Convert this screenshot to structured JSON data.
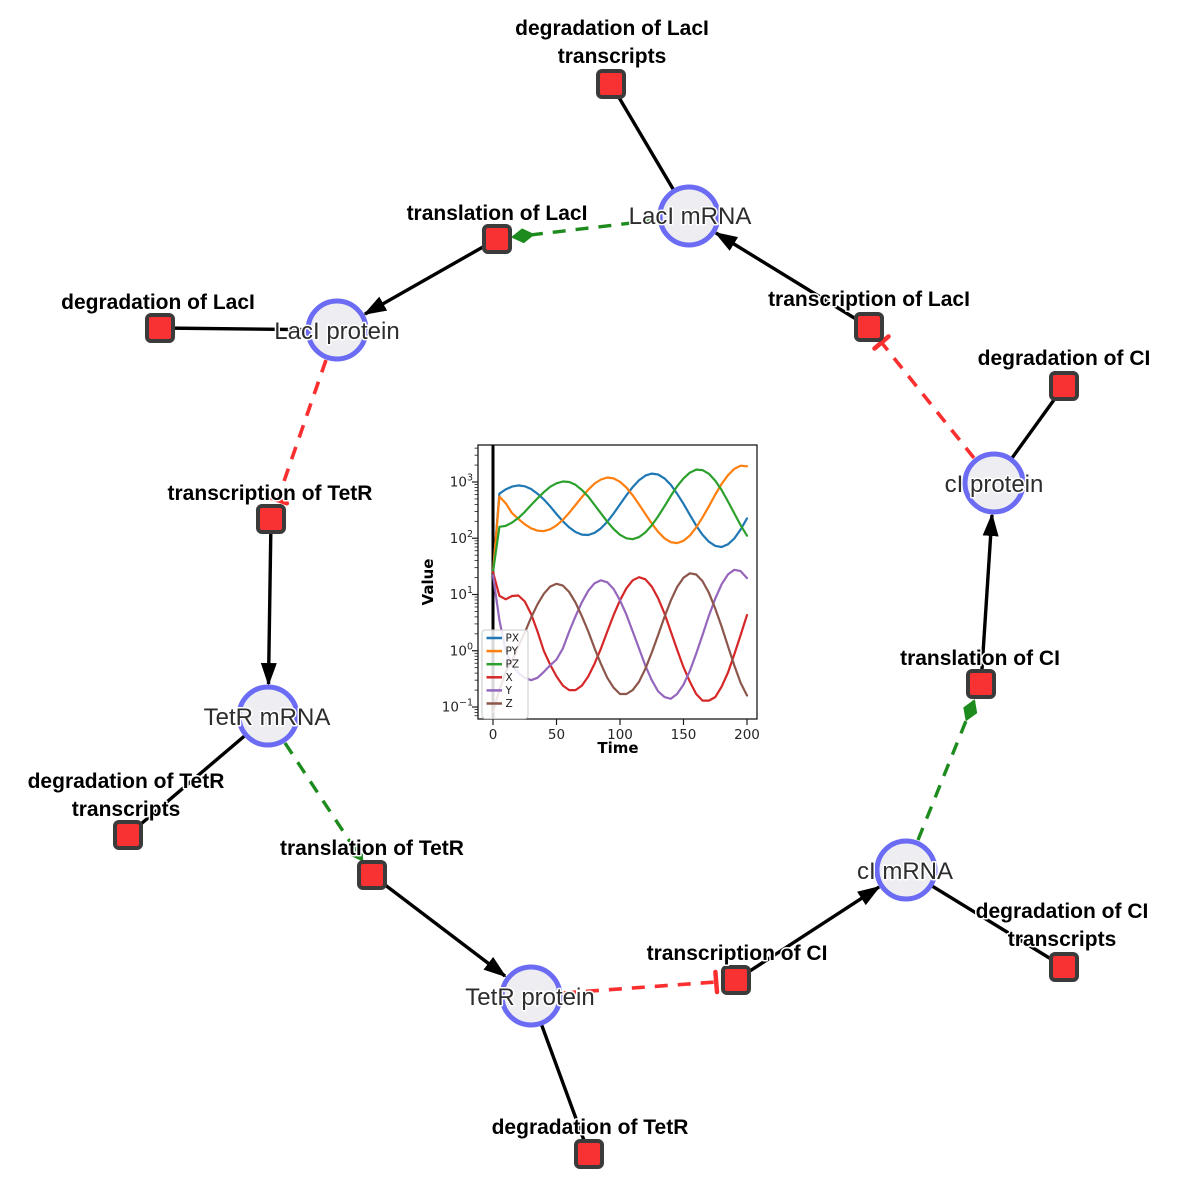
{
  "colors": {
    "species_fill": "#ededf2",
    "species_stroke": "#6b6cf3",
    "reaction_fill": "#f83232",
    "reaction_stroke": "#3b3b3b",
    "edge": "#000000",
    "activation": "#1e8b1e",
    "inhibition": "#fb2f2f"
  },
  "species": {
    "laci_mrna": {
      "label": "LacI mRNA"
    },
    "laci_protein": {
      "label": "LacI protein"
    },
    "tetr_mrna": {
      "label": "TetR mRNA"
    },
    "tetr_protein": {
      "label": "TetR protein"
    },
    "ci_mrna": {
      "label": "cI mRNA"
    },
    "ci_protein": {
      "label": "cI protein"
    }
  },
  "reactions": {
    "deg_laci_tx": {
      "line1": "degradation of LacI",
      "line2": "transcripts"
    },
    "transl_laci": {
      "label": "translation of LacI"
    },
    "deg_laci": {
      "label": "degradation of LacI"
    },
    "txn_laci": {
      "label": "transcription of LacI"
    },
    "deg_ci": {
      "label": "degradation of CI"
    },
    "txn_tetr": {
      "label": "transcription of TetR"
    },
    "deg_tetr_tx": {
      "line1": "degradation of TetR",
      "line2": "transcripts"
    },
    "transl_tetr": {
      "label": "translation of TetR"
    },
    "deg_tetr": {
      "label": "degradation of TetR"
    },
    "txn_ci": {
      "label": "transcription of CI"
    },
    "deg_ci_tx": {
      "line1": "degradation of CI",
      "line2": "transcripts"
    },
    "transl_ci": {
      "label": "translation of CI"
    }
  },
  "chart_data": {
    "type": "line",
    "title": "",
    "xlabel": "Time",
    "ylabel": "Value",
    "x_range": [
      0,
      200
    ],
    "xticks": [
      0,
      50,
      100,
      150,
      200
    ],
    "y_scale": "log",
    "ytick_exponents": [
      3,
      2,
      1,
      0,
      -1
    ],
    "grid": false,
    "legend_position": "lower left",
    "vline_x": 0,
    "x": [
      0,
      5,
      10,
      15,
      20,
      25,
      30,
      35,
      40,
      45,
      50,
      55,
      60,
      65,
      70,
      75,
      80,
      85,
      90,
      95,
      100,
      105,
      110,
      115,
      120,
      125,
      130,
      135,
      140,
      145,
      150,
      155,
      160,
      165,
      170,
      175,
      180,
      185,
      190,
      195,
      200
    ],
    "series": [
      {
        "name": "PX",
        "color": "#1f77b4",
        "values": [
          25,
          620,
          740,
          830,
          870,
          840,
          750,
          620,
          490,
          370,
          270,
          200,
          156,
          129,
          116,
          114,
          125,
          150,
          197,
          275,
          400,
          580,
          810,
          1070,
          1300,
          1410,
          1360,
          1160,
          890,
          620,
          410,
          260,
          168,
          115,
          87,
          73,
          70,
          78,
          99,
          143,
          225
        ]
      },
      {
        "name": "PY",
        "color": "#ff7f0e",
        "values": [
          25,
          550,
          420,
          280,
          220,
          177,
          150,
          136,
          134,
          144,
          169,
          213,
          284,
          390,
          540,
          730,
          940,
          1110,
          1200,
          1160,
          1010,
          800,
          580,
          400,
          270,
          182,
          130,
          100,
          85,
          82,
          90,
          112,
          156,
          235,
          370,
          600,
          920,
          1320,
          1710,
          1950,
          1900
        ]
      },
      {
        "name": "PZ",
        "color": "#2ca02c",
        "values": [
          25,
          160,
          166,
          190,
          230,
          294,
          390,
          510,
          660,
          820,
          950,
          1020,
          1000,
          890,
          720,
          550,
          390,
          277,
          197,
          146,
          115,
          100,
          96,
          105,
          127,
          170,
          245,
          370,
          565,
          840,
          1160,
          1470,
          1660,
          1630,
          1400,
          1050,
          720,
          450,
          277,
          171,
          111
        ]
      },
      {
        "name": "X",
        "color": "#d62728",
        "values": [
          25,
          9.5,
          8.2,
          9.4,
          9.6,
          7.5,
          4.5,
          2.2,
          1.0,
          0.57,
          0.35,
          0.24,
          0.2,
          0.2,
          0.24,
          0.35,
          0.59,
          1.1,
          2.2,
          4.3,
          7.9,
          12.9,
          17.9,
          20.3,
          18.6,
          13.8,
          8.6,
          4.6,
          2.2,
          1.05,
          0.51,
          0.28,
          0.17,
          0.13,
          0.13,
          0.15,
          0.23,
          0.41,
          0.86,
          1.9,
          4.3
        ]
      },
      {
        "name": "Y",
        "color": "#9467bd",
        "values": [
          22,
          3.5,
          1.0,
          0.55,
          0.4,
          0.33,
          0.3,
          0.33,
          0.42,
          0.55,
          0.7,
          1.1,
          2.2,
          4.1,
          7.3,
          11.7,
          15.9,
          17.9,
          16.5,
          12.5,
          7.9,
          4.4,
          2.2,
          1.1,
          0.54,
          0.3,
          0.19,
          0.15,
          0.14,
          0.17,
          0.25,
          0.44,
          0.89,
          1.9,
          4.2,
          8.5,
          15.2,
          22.8,
          27.5,
          26.1,
          19.6
        ]
      },
      {
        "name": "Z",
        "color": "#8c564b",
        "values": [
          0.08,
          0.2,
          0.42,
          0.67,
          1.2,
          2.1,
          3.9,
          6.7,
          10.3,
          13.8,
          15.5,
          14.4,
          11.1,
          7.2,
          4.1,
          2.2,
          1.1,
          0.58,
          0.33,
          0.22,
          0.17,
          0.17,
          0.2,
          0.28,
          0.48,
          0.93,
          1.9,
          4.0,
          7.8,
          13.6,
          19.9,
          23.8,
          22.7,
          17.3,
          10.7,
          5.6,
          2.7,
          1.2,
          0.55,
          0.27,
          0.16
        ]
      }
    ]
  }
}
